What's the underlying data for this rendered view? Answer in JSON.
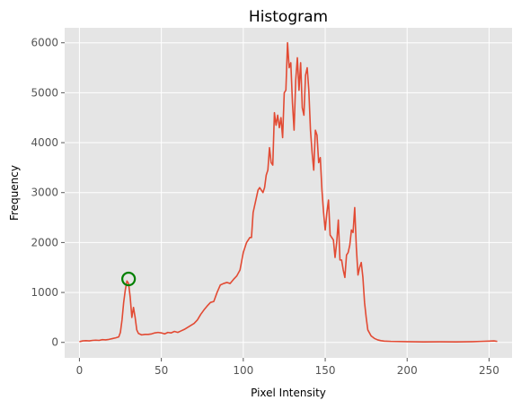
{
  "chart_data": {
    "type": "line",
    "title": "Histogram",
    "xlabel": "Pixel Intensity",
    "ylabel": "Frequency",
    "xlim": [
      -9,
      264
    ],
    "ylim": [
      -310,
      6300
    ],
    "xticks": [
      0,
      50,
      100,
      150,
      200,
      250
    ],
    "yticks": [
      0,
      1000,
      2000,
      3000,
      4000,
      5000,
      6000
    ],
    "grid": true,
    "style": "ggplot",
    "colors": {
      "plot_background": "#e5e5e5",
      "grid": "#ffffff",
      "line": "#e24a33",
      "marker": "#008000",
      "tick_text": "#555555"
    },
    "series": [
      {
        "points": [
          [
            0,
            15
          ],
          [
            2,
            30
          ],
          [
            4,
            35
          ],
          [
            6,
            30
          ],
          [
            8,
            40
          ],
          [
            10,
            45
          ],
          [
            12,
            40
          ],
          [
            14,
            55
          ],
          [
            16,
            50
          ],
          [
            18,
            60
          ],
          [
            20,
            75
          ],
          [
            22,
            90
          ],
          [
            24,
            110
          ],
          [
            25,
            200
          ],
          [
            26,
            450
          ],
          [
            27,
            800
          ],
          [
            28,
            1050
          ],
          [
            29,
            1230
          ],
          [
            30,
            1180
          ],
          [
            31,
            900
          ],
          [
            32,
            500
          ],
          [
            33,
            700
          ],
          [
            34,
            500
          ],
          [
            35,
            250
          ],
          [
            36,
            180
          ],
          [
            38,
            150
          ],
          [
            40,
            160
          ],
          [
            42,
            160
          ],
          [
            44,
            170
          ],
          [
            46,
            190
          ],
          [
            48,
            200
          ],
          [
            50,
            190
          ],
          [
            52,
            170
          ],
          [
            54,
            200
          ],
          [
            56,
            190
          ],
          [
            58,
            220
          ],
          [
            60,
            200
          ],
          [
            62,
            230
          ],
          [
            64,
            260
          ],
          [
            66,
            300
          ],
          [
            68,
            340
          ],
          [
            70,
            380
          ],
          [
            72,
            450
          ],
          [
            74,
            560
          ],
          [
            76,
            650
          ],
          [
            78,
            730
          ],
          [
            80,
            800
          ],
          [
            82,
            820
          ],
          [
            84,
            1000
          ],
          [
            86,
            1150
          ],
          [
            88,
            1180
          ],
          [
            90,
            1200
          ],
          [
            92,
            1180
          ],
          [
            94,
            1260
          ],
          [
            96,
            1330
          ],
          [
            98,
            1450
          ],
          [
            100,
            1800
          ],
          [
            102,
            2000
          ],
          [
            104,
            2100
          ],
          [
            105,
            2100
          ],
          [
            106,
            2600
          ],
          [
            108,
            2900
          ],
          [
            109,
            3050
          ],
          [
            110,
            3100
          ],
          [
            112,
            3000
          ],
          [
            113,
            3100
          ],
          [
            114,
            3350
          ],
          [
            115,
            3450
          ],
          [
            116,
            3900
          ],
          [
            117,
            3600
          ],
          [
            118,
            3550
          ],
          [
            119,
            4600
          ],
          [
            120,
            4350
          ],
          [
            121,
            4550
          ],
          [
            122,
            4300
          ],
          [
            123,
            4500
          ],
          [
            124,
            4100
          ],
          [
            125,
            5000
          ],
          [
            126,
            5050
          ],
          [
            127,
            6000
          ],
          [
            128,
            5500
          ],
          [
            129,
            5600
          ],
          [
            130,
            4800
          ],
          [
            131,
            4250
          ],
          [
            132,
            5250
          ],
          [
            133,
            5700
          ],
          [
            134,
            5050
          ],
          [
            135,
            5600
          ],
          [
            136,
            4700
          ],
          [
            137,
            4550
          ],
          [
            138,
            5350
          ],
          [
            139,
            5500
          ],
          [
            140,
            5050
          ],
          [
            141,
            4250
          ],
          [
            142,
            3800
          ],
          [
            143,
            3450
          ],
          [
            144,
            4250
          ],
          [
            145,
            4150
          ],
          [
            146,
            3600
          ],
          [
            147,
            3700
          ],
          [
            148,
            3050
          ],
          [
            149,
            2600
          ],
          [
            150,
            2250
          ],
          [
            151,
            2600
          ],
          [
            152,
            2850
          ],
          [
            153,
            2150
          ],
          [
            154,
            2100
          ],
          [
            155,
            2050
          ],
          [
            156,
            1700
          ],
          [
            157,
            2000
          ],
          [
            158,
            2450
          ],
          [
            159,
            1650
          ],
          [
            160,
            1650
          ],
          [
            161,
            1450
          ],
          [
            162,
            1300
          ],
          [
            163,
            1750
          ],
          [
            164,
            1800
          ],
          [
            165,
            1950
          ],
          [
            166,
            2250
          ],
          [
            167,
            2200
          ],
          [
            168,
            2700
          ],
          [
            169,
            1900
          ],
          [
            170,
            1350
          ],
          [
            171,
            1500
          ],
          [
            172,
            1600
          ],
          [
            173,
            1300
          ],
          [
            174,
            800
          ],
          [
            175,
            500
          ],
          [
            176,
            250
          ],
          [
            178,
            130
          ],
          [
            180,
            80
          ],
          [
            182,
            50
          ],
          [
            184,
            35
          ],
          [
            186,
            25
          ],
          [
            190,
            20
          ],
          [
            200,
            15
          ],
          [
            210,
            10
          ],
          [
            220,
            12
          ],
          [
            230,
            10
          ],
          [
            240,
            15
          ],
          [
            245,
            20
          ],
          [
            250,
            25
          ],
          [
            253,
            30
          ],
          [
            255,
            20
          ]
        ]
      }
    ],
    "annotations": [
      {
        "type": "circle-marker",
        "x": 30,
        "y": 1270
      }
    ]
  }
}
